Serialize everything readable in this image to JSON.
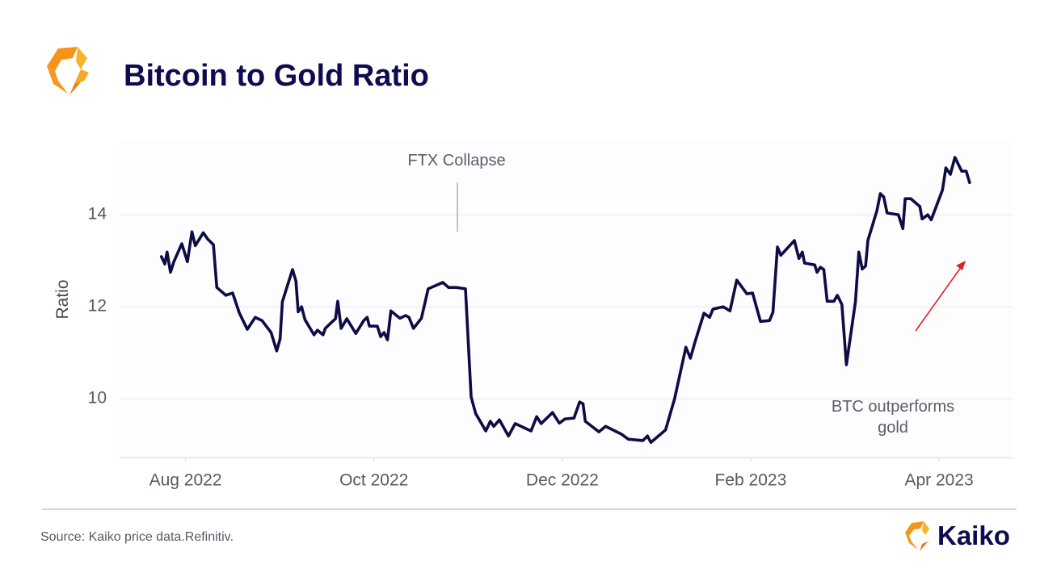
{
  "chart_data": {
    "type": "line",
    "title": "Bitcoin to Gold Ratio",
    "y_label": "Ratio",
    "annotations": [
      "FTX Collapse",
      "BTC outperforms gold"
    ],
    "source": "Source: Kaiko price data.Refinitiv.",
    "brand": "Kaiko",
    "grid": true,
    "xlim": [
      2022.525,
      2023.315
    ],
    "xticks": [
      {
        "value": 2022.5833,
        "label": "Aug 2022"
      },
      {
        "value": 2022.75,
        "label": "Oct 2022"
      },
      {
        "value": 2022.9167,
        "label": "Dec 2022"
      },
      {
        "value": 2023.0833,
        "label": "Feb 2023"
      },
      {
        "value": 2023.25,
        "label": "Apr 2023"
      }
    ],
    "ylim": [
      8.72,
      15.6
    ],
    "yticks": [
      10,
      12,
      14
    ],
    "x": [
      2022.562,
      2022.565,
      2022.567,
      2022.57,
      2022.573,
      2022.58,
      2022.585,
      2022.589,
      2022.592,
      2022.599,
      2022.603,
      2022.608,
      2022.611,
      2022.619,
      2022.625,
      2022.631,
      2022.638,
      2022.645,
      2022.651,
      2022.659,
      2022.664,
      2022.667,
      2022.669,
      2022.678,
      2022.681,
      2022.683,
      2022.686,
      2022.689,
      2022.697,
      2022.7,
      2022.705,
      2022.707,
      2022.712,
      2022.716,
      2022.718,
      2022.721,
      2022.726,
      2022.734,
      2022.741,
      2022.744,
      2022.746,
      2022.753,
      2022.756,
      2022.759,
      2022.762,
      2022.765,
      2022.773,
      2022.778,
      2022.781,
      2022.785,
      2022.792,
      2022.798,
      2022.811,
      2022.816,
      2022.823,
      2022.831,
      2022.836,
      2022.84,
      2022.849,
      2022.853,
      2022.856,
      2022.861,
      2022.869,
      2022.875,
      2022.889,
      2022.894,
      2022.898,
      2022.908,
      2022.914,
      2022.919,
      2022.927,
      2022.932,
      2022.935,
      2022.937,
      2022.949,
      2022.955,
      2022.969,
      2022.975,
      2022.988,
      2022.992,
      2022.995,
      2023.008,
      2023.016,
      2023.026,
      2023.03,
      2023.034,
      2023.042,
      2023.047,
      2023.05,
      2023.059,
      2023.065,
      2023.071,
      2023.08,
      2023.085,
      2023.092,
      2023.1,
      2023.103,
      2023.107,
      2023.11,
      2023.122,
      2023.126,
      2023.129,
      2023.131,
      2023.14,
      2023.142,
      2023.145,
      2023.148,
      2023.151,
      2023.157,
      2023.16,
      2023.164,
      2023.168,
      2023.176,
      2023.179,
      2023.182,
      2023.185,
      2023.187,
      2023.195,
      2023.198,
      2023.201,
      2023.204,
      2023.214,
      2023.218,
      2023.22,
      2023.225,
      2023.233,
      2023.235,
      2023.24,
      2023.243,
      2023.253,
      2023.256,
      2023.26,
      2023.264,
      2023.27,
      2023.274,
      2023.277
    ],
    "series": [
      {
        "name": "Bitcoin to Gold Ratio",
        "color": "#0d0c45",
        "values": [
          13.09,
          12.93,
          13.19,
          12.75,
          12.98,
          13.37,
          12.98,
          13.63,
          13.33,
          13.61,
          13.47,
          13.35,
          12.42,
          12.25,
          12.3,
          11.86,
          11.51,
          11.77,
          11.7,
          11.44,
          11.04,
          11.3,
          12.11,
          12.81,
          12.56,
          11.89,
          12.0,
          11.72,
          11.39,
          11.49,
          11.39,
          11.53,
          11.65,
          11.74,
          12.12,
          11.53,
          11.74,
          11.42,
          11.7,
          11.77,
          11.58,
          11.58,
          11.35,
          11.44,
          11.28,
          11.91,
          11.75,
          11.81,
          11.77,
          11.53,
          11.75,
          12.39,
          12.53,
          12.42,
          12.42,
          12.39,
          10.04,
          9.68,
          9.3,
          9.51,
          9.4,
          9.54,
          9.19,
          9.46,
          9.3,
          9.61,
          9.46,
          9.7,
          9.47,
          9.56,
          9.58,
          9.93,
          9.89,
          9.51,
          9.28,
          9.4,
          9.23,
          9.12,
          9.09,
          9.19,
          9.05,
          9.32,
          10.0,
          11.12,
          10.88,
          11.23,
          11.86,
          11.77,
          11.95,
          12.0,
          11.91,
          12.58,
          12.28,
          12.3,
          11.68,
          11.7,
          11.88,
          13.3,
          13.12,
          13.44,
          13.05,
          13.19,
          12.95,
          12.91,
          12.75,
          12.86,
          12.81,
          12.12,
          12.12,
          12.25,
          12.05,
          10.74,
          12.11,
          13.19,
          12.82,
          12.89,
          13.44,
          14.09,
          14.46,
          14.39,
          14.04,
          14.0,
          13.7,
          14.35,
          14.35,
          14.18,
          13.91,
          14.0,
          13.89,
          14.54,
          15.02,
          14.88,
          15.25,
          14.95,
          14.95,
          14.7
        ]
      }
    ]
  }
}
